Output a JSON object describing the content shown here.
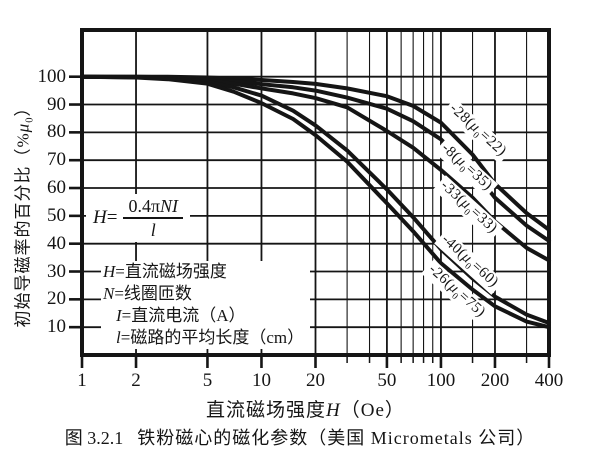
{
  "figure": {
    "caption_num": "图 3.2.1",
    "caption_text": "铁粉磁心的磁化参数（美国 Micrometals 公司）"
  },
  "axes": {
    "y_title": {
      "pre": "初始导磁率的百分比（%",
      "mu": "μ",
      "sub": "0",
      "post": "）"
    },
    "x_title": {
      "pre": "直流磁场强度",
      "it": "H",
      "post": "（Oe）"
    }
  },
  "formula": {
    "lhs_it": "H",
    "lhs_eq": "=",
    "num_pre": "0.4π",
    "num_it": "NI",
    "den_it": "l"
  },
  "legend_lines": [
    {
      "it": "H",
      "rest": "=直流磁场强度"
    },
    {
      "it": "N",
      "rest": "=线圈匝数"
    },
    {
      "it": "I",
      "rest": "=直流电流（A）"
    },
    {
      "it": "l",
      "rest": "=磁路的平均长度（cm）"
    }
  ],
  "chart_data": {
    "type": "line",
    "x_scale": "log",
    "xlim": [
      1,
      400
    ],
    "ylim": [
      0,
      116
    ],
    "grid": true,
    "title": "图 3.2.1 铁粉磁心的磁化参数（美国 Micrometals 公司）",
    "xlabel": "直流磁场强度H（Oe）",
    "ylabel": "初始导磁率的百分比（%μ0）",
    "x_ticks_major": [
      1,
      2,
      5,
      10,
      20,
      50,
      100,
      200,
      400
    ],
    "x_ticks_minor": [
      30,
      40,
      60,
      70,
      80,
      90,
      150,
      300
    ],
    "y_ticks": [
      10,
      20,
      30,
      40,
      50,
      60,
      70,
      80,
      90,
      100
    ],
    "colors": {
      "ink": "#151515",
      "bg": "#ffffff"
    },
    "series": [
      {
        "name": "-28",
        "mu0": 22,
        "label_pre": "-28(",
        "label_mu": "μ",
        "label_sub": "0",
        "label_post": "=22)",
        "points": [
          [
            1,
            100
          ],
          [
            2,
            100
          ],
          [
            3,
            100
          ],
          [
            5,
            99.7
          ],
          [
            7,
            99.3
          ],
          [
            10,
            98.8
          ],
          [
            15,
            98.1
          ],
          [
            20,
            97.4
          ],
          [
            30,
            95.8
          ],
          [
            50,
            93
          ],
          [
            70,
            89.5
          ],
          [
            100,
            83.5
          ],
          [
            150,
            72
          ],
          [
            200,
            61.5
          ],
          [
            300,
            51
          ],
          [
            400,
            45
          ]
        ]
      },
      {
        "name": "-8",
        "mu0": 35,
        "label_pre": "-8(",
        "label_mu": "μ",
        "label_sub": "0",
        "label_post": "=35)",
        "points": [
          [
            1,
            100
          ],
          [
            2,
            100
          ],
          [
            3,
            99.8
          ],
          [
            5,
            99.3
          ],
          [
            7,
            98.5
          ],
          [
            10,
            97.3
          ],
          [
            15,
            96.2
          ],
          [
            20,
            95
          ],
          [
            30,
            92.5
          ],
          [
            50,
            88.5
          ],
          [
            70,
            84
          ],
          [
            100,
            77.5
          ],
          [
            150,
            66.5
          ],
          [
            200,
            56.5
          ],
          [
            300,
            46.5
          ],
          [
            400,
            41
          ]
        ]
      },
      {
        "name": "-33",
        "mu0": 33,
        "label_pre": "-33(",
        "label_mu": "μ",
        "label_sub": "0",
        "label_post": "=33)",
        "points": [
          [
            1,
            100
          ],
          [
            2,
            99.9
          ],
          [
            3,
            99.6
          ],
          [
            5,
            98.8
          ],
          [
            7,
            97.5
          ],
          [
            10,
            95.8
          ],
          [
            15,
            94
          ],
          [
            20,
            92.3
          ],
          [
            30,
            89
          ],
          [
            50,
            80.5
          ],
          [
            70,
            74.5
          ],
          [
            100,
            66.5
          ],
          [
            150,
            56.5
          ],
          [
            200,
            48
          ],
          [
            300,
            38.5
          ],
          [
            400,
            34
          ]
        ]
      },
      {
        "name": "-40",
        "mu0": 60,
        "label_pre": "-40(",
        "label_mu": "μ",
        "label_sub": "0",
        "label_post": "=60)",
        "points": [
          [
            1,
            100
          ],
          [
            2,
            99.8
          ],
          [
            3,
            99.4
          ],
          [
            5,
            98.2
          ],
          [
            7,
            96.2
          ],
          [
            10,
            93.2
          ],
          [
            15,
            87.8
          ],
          [
            20,
            82.5
          ],
          [
            30,
            73.5
          ],
          [
            50,
            59.5
          ],
          [
            70,
            49.5
          ],
          [
            100,
            38
          ],
          [
            150,
            27.5
          ],
          [
            200,
            21
          ],
          [
            300,
            14.5
          ],
          [
            400,
            11.5
          ]
        ]
      },
      {
        "name": "-26",
        "mu0": 75,
        "label_pre": "-26(",
        "label_mu": "μ",
        "label_sub": "0",
        "label_post": "=75)",
        "points": [
          [
            1,
            100
          ],
          [
            2,
            99.7
          ],
          [
            3,
            99.1
          ],
          [
            5,
            97.5
          ],
          [
            7,
            94.6
          ],
          [
            10,
            90.5
          ],
          [
            15,
            84.8
          ],
          [
            20,
            79
          ],
          [
            30,
            69.5
          ],
          [
            50,
            54.5
          ],
          [
            70,
            44.5
          ],
          [
            100,
            33
          ],
          [
            150,
            23.5
          ],
          [
            200,
            17.5
          ],
          [
            300,
            12
          ],
          [
            400,
            10
          ]
        ]
      }
    ]
  }
}
